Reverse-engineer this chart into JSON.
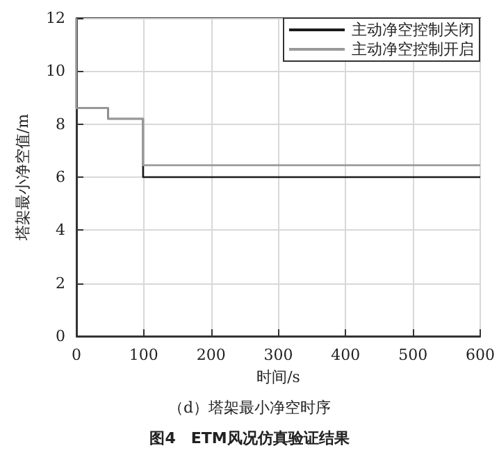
{
  "chart_data": {
    "type": "step",
    "subtitle": "（d）塔架最小净空时序",
    "title": "图4　ETM风况仿真验证结果",
    "xlabel": "时间/s",
    "ylabel": "塔架最小净空值/m",
    "x": [
      0,
      47,
      99,
      600
    ],
    "series": [
      {
        "name": "主动净空控制关闭",
        "color": "#1a1a1a",
        "values": [
          12,
          8.6,
          8.2,
          6
        ]
      },
      {
        "name": "主动净空控制开启",
        "color": "#999999",
        "values": [
          12,
          8.6,
          8.2,
          6.45
        ]
      }
    ],
    "xlim": [
      0,
      600
    ],
    "xticks": [
      0,
      100,
      200,
      300,
      400,
      500,
      600
    ],
    "ylim": [
      0,
      12
    ],
    "yticks": [
      0,
      2,
      4,
      6,
      8,
      10,
      12
    ],
    "grid": true,
    "legend": "top right",
    "marker": "none",
    "line_style": "solid"
  }
}
